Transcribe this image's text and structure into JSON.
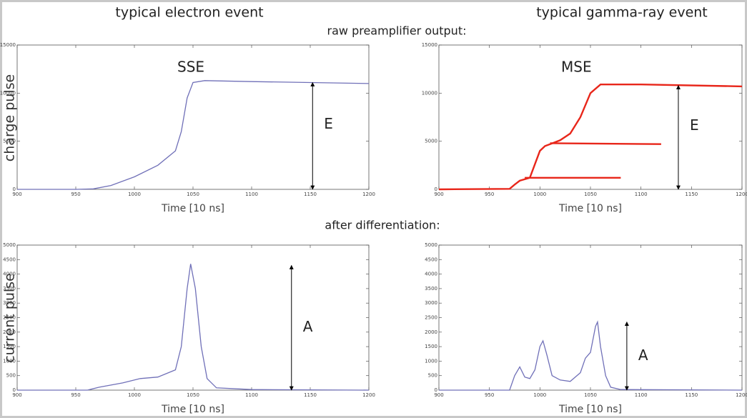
{
  "labels": {
    "left_title": "typical electron event",
    "right_title": "typical gamma-ray event",
    "top_row": "raw preamplifier output:",
    "bottom_row": "after differentiation:",
    "top_ylabel": "charge pulse",
    "bottom_ylabel": "current pulse"
  },
  "chart_data": [
    {
      "type": "line",
      "xlabel": "Time [10 ns]",
      "inset_label": "SSE",
      "arrow_label": "E",
      "xlim": [
        900,
        1200
      ],
      "ylim": [
        0,
        15000
      ],
      "xticks": [
        900,
        950,
        1000,
        1050,
        1100,
        1150,
        1200
      ],
      "yticks": [
        0,
        5000,
        10000,
        15000
      ],
      "series": [
        {
          "color": "#7070b8",
          "x": [
            900,
            950,
            965,
            980,
            1000,
            1020,
            1035,
            1040,
            1045,
            1050,
            1060,
            1100,
            1150,
            1200
          ],
          "values": [
            0,
            0,
            50,
            400,
            1300,
            2500,
            4000,
            6000,
            9500,
            11100,
            11300,
            11200,
            11100,
            11000
          ]
        }
      ]
    },
    {
      "type": "line",
      "xlabel": "Time [10 ns]",
      "inset_label": "MSE",
      "arrow_label": "E",
      "xlim": [
        900,
        1200
      ],
      "ylim": [
        0,
        15000
      ],
      "xticks": [
        900,
        950,
        1000,
        1050,
        1100,
        1150,
        1200
      ],
      "yticks": [
        0,
        5000,
        10000,
        15000
      ],
      "series": [
        {
          "color": "#e8261a",
          "x": [
            900,
            970,
            975,
            980,
            990,
            1000,
            1005,
            1010,
            1020,
            1030,
            1040,
            1050,
            1060,
            1100,
            1200
          ],
          "values": [
            0,
            50,
            500,
            900,
            1200,
            4000,
            4500,
            4700,
            5100,
            5800,
            7500,
            10000,
            10900,
            10900,
            10700
          ]
        },
        {
          "color": "#e8261a",
          "x": [
            1010,
            1120
          ],
          "values": [
            4800,
            4700
          ]
        },
        {
          "color": "#e8261a",
          "x": [
            985,
            1080
          ],
          "values": [
            1200,
            1200
          ]
        }
      ]
    },
    {
      "type": "line",
      "xlabel": "Time [10 ns]",
      "arrow_label": "A",
      "xlim": [
        900,
        1200
      ],
      "ylim": [
        0,
        5000
      ],
      "xticks": [
        900,
        950,
        1000,
        1050,
        1100,
        1150,
        1200
      ],
      "yticks": [
        0,
        500,
        1000,
        1500,
        2000,
        2500,
        3000,
        3500,
        4000,
        4500,
        5000
      ],
      "series": [
        {
          "color": "#7070b8",
          "x": [
            900,
            960,
            970,
            990,
            1005,
            1020,
            1035,
            1040,
            1045,
            1048,
            1052,
            1057,
            1062,
            1070,
            1100,
            1200
          ],
          "values": [
            0,
            0,
            100,
            250,
            400,
            450,
            700,
            1500,
            3500,
            4350,
            3500,
            1500,
            400,
            80,
            20,
            0
          ]
        }
      ]
    },
    {
      "type": "line",
      "xlabel": "Time [10 ns]",
      "arrow_label": "A",
      "xlim": [
        900,
        1200
      ],
      "ylim": [
        0,
        5000
      ],
      "xticks": [
        900,
        950,
        1000,
        1050,
        1100,
        1150,
        1200
      ],
      "yticks": [
        0,
        500,
        1000,
        1500,
        2000,
        2500,
        3000,
        3500,
        4000,
        4500,
        5000
      ],
      "series": [
        {
          "color": "#7070b8",
          "x": [
            900,
            970,
            975,
            980,
            985,
            990,
            995,
            1000,
            1003,
            1007,
            1012,
            1020,
            1030,
            1040,
            1045,
            1050,
            1055,
            1057,
            1060,
            1065,
            1070,
            1080,
            1200
          ],
          "values": [
            0,
            0,
            500,
            800,
            450,
            400,
            700,
            1500,
            1700,
            1200,
            500,
            350,
            300,
            600,
            1100,
            1300,
            2200,
            2350,
            1500,
            500,
            100,
            20,
            0
          ]
        }
      ]
    }
  ]
}
